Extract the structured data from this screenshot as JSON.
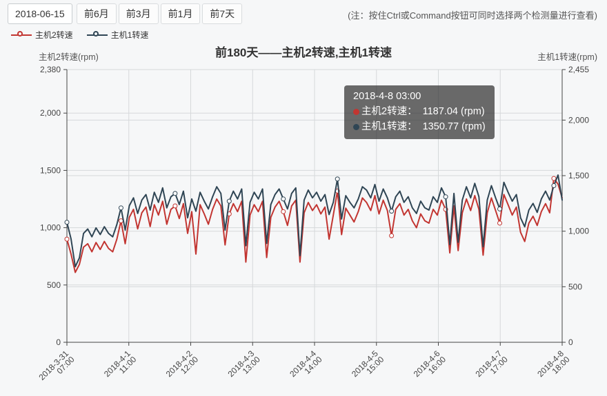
{
  "toolbar": {
    "date_value": "2018-06-15",
    "buttons": [
      "前6月",
      "前3月",
      "前1月",
      "前7天"
    ],
    "note": "(注：按住Ctrl或Command按钮可同时选择两个检测量进行查看)"
  },
  "legend": [
    {
      "label": "主机2转速",
      "color": "#c23531"
    },
    {
      "label": "主机1转速",
      "color": "#2f4554"
    }
  ],
  "chart": {
    "title": "前180天——主机2转速,主机1转速",
    "left_axis_name": "主机2转速(rpm)",
    "right_axis_name": "主机1转速(rpm)"
  },
  "tooltip": {
    "title": "2018-4-8 03:00",
    "rows": [
      {
        "color": "#c23531",
        "text": "主机2转速：  1187.04 (rpm)"
      },
      {
        "color": "#2f4554",
        "text": "主机1转速：  1350.77 (rpm)"
      }
    ]
  },
  "chart_data": {
    "type": "line",
    "title": "前180天——主机2转速,主机1转速",
    "grid": true,
    "legend_position": "top-left",
    "x_tick_labels": [
      [
        "2018-3-31",
        "07:00"
      ],
      [
        "2018-4-1",
        "11:00"
      ],
      [
        "2018-4-2",
        "12:00"
      ],
      [
        "2018-4-3",
        "13:00"
      ],
      [
        "2018-4-4",
        "14:00"
      ],
      [
        "2018-4-5",
        "15:00"
      ],
      [
        "2018-4-6",
        "16:00"
      ],
      [
        "2018-4-7",
        "17:00"
      ],
      [
        "2018-4-8",
        "18:00"
      ]
    ],
    "left_axis": {
      "name": "主机2转速(rpm)",
      "min": 0,
      "max": 2380,
      "ticks": [
        {
          "v": 0,
          "label": "0"
        },
        {
          "v": 500,
          "label": "500"
        },
        {
          "v": 1000,
          "label": "1,000"
        },
        {
          "v": 1500,
          "label": "1,500"
        },
        {
          "v": 2000,
          "label": "2,000"
        },
        {
          "v": 2380,
          "label": "2,380"
        }
      ]
    },
    "right_axis": {
      "name": "主机1转速(rpm)",
      "min": 0,
      "max": 2455,
      "ticks": [
        {
          "v": 0,
          "label": "0"
        },
        {
          "v": 500,
          "label": "500"
        },
        {
          "v": 1000,
          "label": "1,000"
        },
        {
          "v": 1500,
          "label": "1,500"
        },
        {
          "v": 2000,
          "label": "2,000"
        },
        {
          "v": 2455,
          "label": "2,455"
        }
      ]
    },
    "series": [
      {
        "name": "主机2转速",
        "yaxis": "left",
        "color": "#c23531",
        "marker_every": 13,
        "values": [
          900,
          770,
          610,
          680,
          830,
          860,
          790,
          870,
          810,
          880,
          820,
          790,
          900,
          1060,
          860,
          1090,
          1160,
          990,
          1130,
          1180,
          1010,
          1200,
          1110,
          1230,
          1030,
          1160,
          1190,
          1080,
          1210,
          950,
          1140,
          770,
          1200,
          1120,
          1030,
          1160,
          1250,
          1190,
          850,
          1120,
          1210,
          1140,
          1230,
          700,
          1110,
          1200,
          1140,
          1230,
          740,
          1090,
          1180,
          1230,
          1140,
          1020,
          1190,
          1240,
          700,
          1130,
          1220,
          1150,
          1200,
          1120,
          1180,
          900,
          1110,
          1320,
          940,
          1170,
          1110,
          1050,
          1140,
          1260,
          1220,
          1150,
          1280,
          1120,
          1240,
          1150,
          930,
          1160,
          1210,
          1110,
          1160,
          1060,
          1000,
          1120,
          1060,
          1040,
          1160,
          1110,
          1240,
          1160,
          780,
          1190,
          800,
          1130,
          1250,
          1150,
          1280,
          1160,
          760,
          1130,
          1260,
          1150,
          1040,
          1290,
          1200,
          1110,
          1180,
          960,
          880,
          1040,
          1100,
          1020,
          1140,
          1210,
          1130,
          1430,
          1380,
          1260
        ]
      },
      {
        "name": "主机1转速",
        "yaxis": "right",
        "color": "#2f4554",
        "marker_every": 13,
        "values": [
          1080,
          930,
          680,
          760,
          980,
          1020,
          950,
          1030,
          970,
          1040,
          980,
          950,
          1060,
          1210,
          1010,
          1230,
          1300,
          1160,
          1280,
          1330,
          1190,
          1350,
          1260,
          1390,
          1210,
          1310,
          1340,
          1240,
          1360,
          1120,
          1290,
          1180,
          1350,
          1270,
          1200,
          1310,
          1400,
          1340,
          1010,
          1270,
          1360,
          1290,
          1380,
          870,
          1260,
          1350,
          1290,
          1380,
          890,
          1240,
          1330,
          1380,
          1290,
          1200,
          1340,
          1390,
          780,
          1280,
          1370,
          1300,
          1350,
          1270,
          1330,
          1150,
          1260,
          1470,
          1110,
          1320,
          1260,
          1210,
          1290,
          1400,
          1370,
          1300,
          1420,
          1270,
          1380,
          1300,
          1180,
          1310,
          1360,
          1260,
          1310,
          1210,
          1160,
          1270,
          1210,
          1190,
          1310,
          1260,
          1390,
          1310,
          880,
          1340,
          900,
          1280,
          1400,
          1300,
          1430,
          1310,
          860,
          1280,
          1410,
          1300,
          1200,
          1440,
          1350,
          1270,
          1330,
          1120,
          1040,
          1190,
          1250,
          1170,
          1290,
          1360,
          1280,
          1410,
          1505,
          1280
        ]
      }
    ]
  }
}
